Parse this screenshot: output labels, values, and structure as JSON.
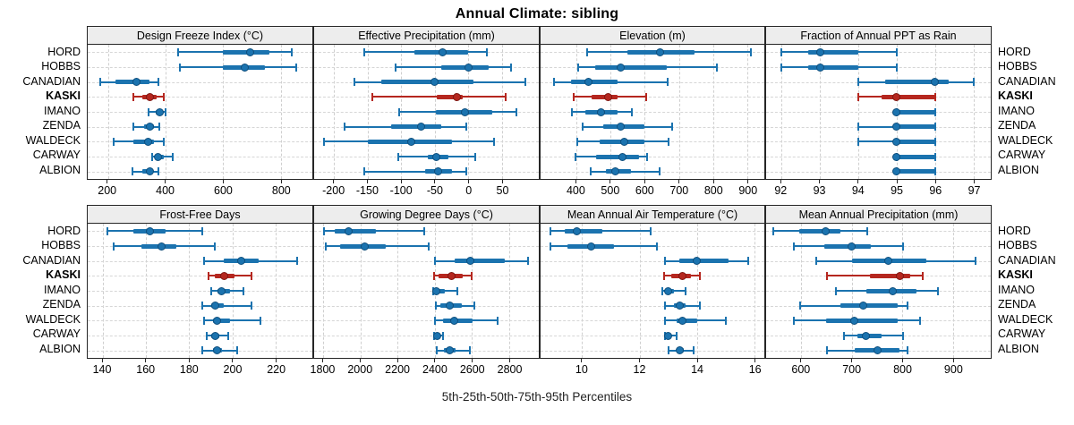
{
  "title": "Annual Climate: sibling",
  "caption": "5th-25th-50th-75th-95th Percentiles",
  "locations": [
    "HORD",
    "HOBBS",
    "CANADIAN",
    "KASKI",
    "IMANO",
    "ZENDA",
    "WALDECK",
    "CARWAY",
    "ALBION"
  ],
  "highlight_location": "KASKI",
  "percentile_labels": [
    "5th",
    "25th",
    "50th",
    "75th",
    "95th"
  ],
  "colors": {
    "series_normal": "#1b73af",
    "series_normal_edge": "#0f4e7c",
    "series_highlight": "#b5271f",
    "series_highlight_edge": "#7e1712",
    "panel_header_bg": "#ededed",
    "panel_border": "#262626",
    "gridline": "#cfcfcf"
  },
  "chart_data": [
    {
      "type": "scatter",
      "subtype": "percentile_intervals",
      "title": "Design Freeze Index (°C)",
      "xlim": [
        130,
        910
      ],
      "xticks": [
        200,
        400,
        600,
        800
      ],
      "grid": true,
      "series": [
        {
          "name": "HORD",
          "values": [
            445,
            600,
            695,
            760,
            840
          ]
        },
        {
          "name": "HOBBS",
          "values": [
            450,
            600,
            675,
            745,
            855
          ]
        },
        {
          "name": "CANADIAN",
          "values": [
            175,
            225,
            300,
            345,
            375
          ]
        },
        {
          "name": "KASKI",
          "values": [
            290,
            320,
            345,
            370,
            395
          ]
        },
        {
          "name": "IMANO",
          "values": [
            340,
            365,
            380,
            390,
            400
          ]
        },
        {
          "name": "ZENDA",
          "values": [
            290,
            325,
            345,
            360,
            380
          ]
        },
        {
          "name": "WALDECK",
          "values": [
            220,
            290,
            340,
            360,
            395
          ]
        },
        {
          "name": "CARWAY",
          "values": [
            355,
            365,
            375,
            395,
            425
          ]
        },
        {
          "name": "ALBION",
          "values": [
            285,
            320,
            345,
            355,
            375
          ]
        }
      ]
    },
    {
      "type": "scatter",
      "subtype": "percentile_intervals",
      "title": "Effective Precipitation (mm)",
      "xlim": [
        -230,
        105
      ],
      "xticks": [
        -200,
        -150,
        -100,
        -50,
        0,
        50
      ],
      "grid": true,
      "series": [
        {
          "name": "HORD",
          "values": [
            -155,
            -80,
            -38,
            0,
            27
          ]
        },
        {
          "name": "HOBBS",
          "values": [
            -108,
            -40,
            0,
            30,
            63
          ]
        },
        {
          "name": "CANADIAN",
          "values": [
            -170,
            -130,
            -50,
            8,
            85
          ]
        },
        {
          "name": "KASKI",
          "values": [
            -143,
            -47,
            -17,
            -8,
            55
          ]
        },
        {
          "name": "IMANO",
          "values": [
            -103,
            -48,
            -5,
            35,
            72
          ]
        },
        {
          "name": "ZENDA",
          "values": [
            -185,
            -115,
            -70,
            -40,
            -3
          ]
        },
        {
          "name": "WALDECK",
          "values": [
            -215,
            -150,
            -85,
            -25,
            38
          ]
        },
        {
          "name": "CARWAY",
          "values": [
            -105,
            -60,
            -48,
            -30,
            10
          ]
        },
        {
          "name": "ALBION",
          "values": [
            -155,
            -65,
            -45,
            -25,
            -3
          ]
        }
      ]
    },
    {
      "type": "scatter",
      "subtype": "percentile_intervals",
      "title": "Elevation (m)",
      "xlim": [
        295,
        950
      ],
      "xticks": [
        400,
        500,
        600,
        700,
        800,
        900
      ],
      "grid": true,
      "series": [
        {
          "name": "HORD",
          "values": [
            430,
            550,
            645,
            745,
            910
          ]
        },
        {
          "name": "HOBBS",
          "values": [
            405,
            455,
            530,
            665,
            812
          ]
        },
        {
          "name": "CANADIAN",
          "values": [
            333,
            385,
            435,
            520,
            667
          ]
        },
        {
          "name": "KASKI",
          "values": [
            392,
            444,
            492,
            521,
            604
          ]
        },
        {
          "name": "IMANO",
          "values": [
            387,
            426,
            472,
            521,
            561
          ]
        },
        {
          "name": "ZENDA",
          "values": [
            418,
            479,
            530,
            600,
            679
          ]
        },
        {
          "name": "WALDECK",
          "values": [
            403,
            468,
            539,
            600,
            669
          ]
        },
        {
          "name": "CARWAY",
          "values": [
            398,
            457,
            534,
            582,
            608
          ]
        },
        {
          "name": "ALBION",
          "values": [
            443,
            487,
            514,
            559,
            644
          ]
        }
      ]
    },
    {
      "type": "scatter",
      "subtype": "percentile_intervals",
      "title": "Fraction of Annual PPT as Rain",
      "xlim": [
        91.6,
        97.45
      ],
      "xticks": [
        92,
        93,
        94,
        95,
        96,
        97
      ],
      "grid": true,
      "series": [
        {
          "name": "HORD",
          "values": [
            92,
            92.7,
            93,
            94,
            95
          ]
        },
        {
          "name": "HOBBS",
          "values": [
            92,
            92.7,
            93,
            94,
            95
          ]
        },
        {
          "name": "CANADIAN",
          "values": [
            94,
            94.7,
            96,
            96.35,
            97
          ]
        },
        {
          "name": "KASKI",
          "values": [
            94,
            94.6,
            95,
            96,
            96
          ]
        },
        {
          "name": "IMANO",
          "values": [
            95,
            95,
            95,
            96,
            96
          ]
        },
        {
          "name": "ZENDA",
          "values": [
            94,
            95,
            95,
            96,
            96
          ]
        },
        {
          "name": "WALDECK",
          "values": [
            94,
            95,
            95,
            96,
            96
          ]
        },
        {
          "name": "CARWAY",
          "values": [
            95,
            95,
            95,
            96,
            96
          ]
        },
        {
          "name": "ALBION",
          "values": [
            95,
            95,
            95,
            96,
            96
          ]
        }
      ]
    },
    {
      "type": "scatter",
      "subtype": "percentile_intervals",
      "title": "Frost-Free Days",
      "xlim": [
        133,
        237
      ],
      "xticks": [
        140,
        160,
        180,
        200,
        220
      ],
      "grid": true,
      "series": [
        {
          "name": "HORD",
          "values": [
            142,
            154,
            162,
            169,
            186
          ]
        },
        {
          "name": "HOBBS",
          "values": [
            145,
            158,
            167,
            174,
            192
          ]
        },
        {
          "name": "CANADIAN",
          "values": [
            187,
            196,
            204,
            212,
            230
          ]
        },
        {
          "name": "KASKI",
          "values": [
            189,
            192,
            196,
            201,
            209
          ]
        },
        {
          "name": "IMANO",
          "values": [
            190,
            193,
            195,
            199,
            205
          ]
        },
        {
          "name": "ZENDA",
          "values": [
            186,
            190,
            192,
            196,
            209
          ]
        },
        {
          "name": "WALDECK",
          "values": [
            187,
            191,
            193,
            199,
            213
          ]
        },
        {
          "name": "CARWAY",
          "values": [
            188,
            190,
            192,
            194,
            198
          ]
        },
        {
          "name": "ALBION",
          "values": [
            186,
            191,
            193,
            195,
            202
          ]
        }
      ]
    },
    {
      "type": "scatter",
      "subtype": "percentile_intervals",
      "title": "Growing Degree Days (°C)",
      "xlim": [
        1750,
        2960
      ],
      "xticks": [
        1800,
        2000,
        2200,
        2400,
        2600,
        2800
      ],
      "grid": true,
      "series": [
        {
          "name": "HORD",
          "values": [
            1805,
            1860,
            1935,
            2085,
            2345
          ]
        },
        {
          "name": "HOBBS",
          "values": [
            1815,
            1890,
            2020,
            2135,
            2365
          ]
        },
        {
          "name": "CANADIAN",
          "values": [
            2400,
            2505,
            2590,
            2775,
            2900
          ]
        },
        {
          "name": "KASKI",
          "values": [
            2395,
            2420,
            2490,
            2550,
            2600
          ]
        },
        {
          "name": "IMANO",
          "values": [
            2390,
            2400,
            2410,
            2455,
            2520
          ]
        },
        {
          "name": "ZENDA",
          "values": [
            2405,
            2430,
            2480,
            2545,
            2615
          ]
        },
        {
          "name": "WALDECK",
          "values": [
            2400,
            2445,
            2505,
            2605,
            2740
          ]
        },
        {
          "name": "CARWAY",
          "values": [
            2395,
            2405,
            2415,
            2430,
            2445
          ]
        },
        {
          "name": "ALBION",
          "values": [
            2410,
            2450,
            2480,
            2510,
            2590
          ]
        }
      ]
    },
    {
      "type": "scatter",
      "subtype": "percentile_intervals",
      "title": "Mean Annual Air Temperature (°C)",
      "xlim": [
        8.55,
        16.35
      ],
      "xticks": [
        10,
        12,
        14,
        16
      ],
      "grid": true,
      "series": [
        {
          "name": "HORD",
          "values": [
            8.9,
            9.4,
            9.8,
            10.7,
            12.4
          ]
        },
        {
          "name": "HOBBS",
          "values": [
            8.9,
            9.5,
            10.3,
            11.1,
            12.6
          ]
        },
        {
          "name": "CANADIAN",
          "values": [
            12.9,
            13.4,
            14.0,
            15.1,
            15.8
          ]
        },
        {
          "name": "KASKI",
          "values": [
            12.85,
            13.1,
            13.5,
            13.8,
            14.1
          ]
        },
        {
          "name": "IMANO",
          "values": [
            12.8,
            12.9,
            13.0,
            13.2,
            13.6
          ]
        },
        {
          "name": "ZENDA",
          "values": [
            12.9,
            13.2,
            13.4,
            13.6,
            14.1
          ]
        },
        {
          "name": "WALDECK",
          "values": [
            12.9,
            13.3,
            13.5,
            14.0,
            15.0
          ]
        },
        {
          "name": "CARWAY",
          "values": [
            12.9,
            12.95,
            13.0,
            13.1,
            13.3
          ]
        },
        {
          "name": "ALBION",
          "values": [
            13.0,
            13.3,
            13.4,
            13.55,
            13.9
          ]
        }
      ]
    },
    {
      "type": "scatter",
      "subtype": "percentile_intervals",
      "title": "Mean Annual Precipitation (mm)",
      "xlim": [
        530,
        975
      ],
      "xticks": [
        600,
        700,
        800,
        900
      ],
      "grid": true,
      "series": [
        {
          "name": "HORD",
          "values": [
            545,
            595,
            648,
            678,
            730
          ]
        },
        {
          "name": "HOBBS",
          "values": [
            585,
            645,
            700,
            738,
            802
          ]
        },
        {
          "name": "CANADIAN",
          "values": [
            630,
            700,
            772,
            848,
            945
          ]
        },
        {
          "name": "KASKI",
          "values": [
            650,
            735,
            795,
            815,
            840
          ]
        },
        {
          "name": "IMANO",
          "values": [
            668,
            728,
            780,
            828,
            870
          ]
        },
        {
          "name": "ZENDA",
          "values": [
            598,
            678,
            722,
            790,
            810
          ]
        },
        {
          "name": "WALDECK",
          "values": [
            585,
            648,
            705,
            790,
            835
          ]
        },
        {
          "name": "CARWAY",
          "values": [
            685,
            710,
            728,
            758,
            802
          ]
        },
        {
          "name": "ALBION",
          "values": [
            650,
            705,
            750,
            795,
            810
          ]
        }
      ]
    }
  ]
}
